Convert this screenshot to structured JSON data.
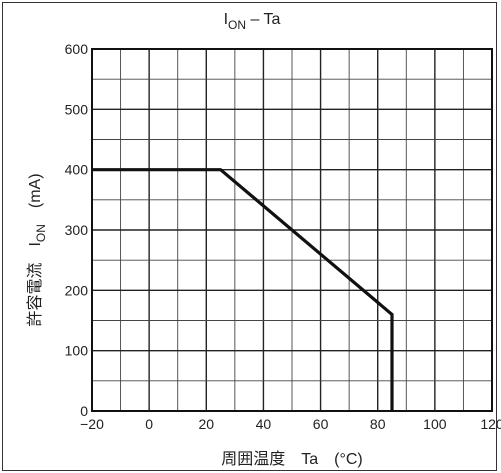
{
  "chart_data": {
    "type": "line",
    "title": {
      "main": "I",
      "sub": "ON",
      "rest": " – Ta"
    },
    "xlabel": "周囲温度　Ta　(°C)",
    "ylabel": {
      "jp": "許容電流",
      "sym": "I",
      "sub": "ON",
      "unit": "(mA)"
    },
    "xlim": [
      -20,
      120
    ],
    "ylim": [
      0,
      600
    ],
    "x_minor_step": 10,
    "y_minor_step": 50,
    "x_ticks": [
      -20,
      0,
      20,
      40,
      60,
      80,
      100,
      120
    ],
    "x_tick_labels": [
      "−20",
      "0",
      "20",
      "40",
      "60",
      "80",
      "100",
      "120"
    ],
    "y_ticks": [
      0,
      100,
      200,
      300,
      400,
      500,
      600
    ],
    "y_tick_labels": [
      "0",
      "100",
      "200",
      "300",
      "400",
      "500",
      "600"
    ],
    "grid": true,
    "series": [
      {
        "x": [
          -20,
          25,
          85,
          85
        ],
        "y": [
          400,
          400,
          160,
          0
        ]
      }
    ]
  }
}
